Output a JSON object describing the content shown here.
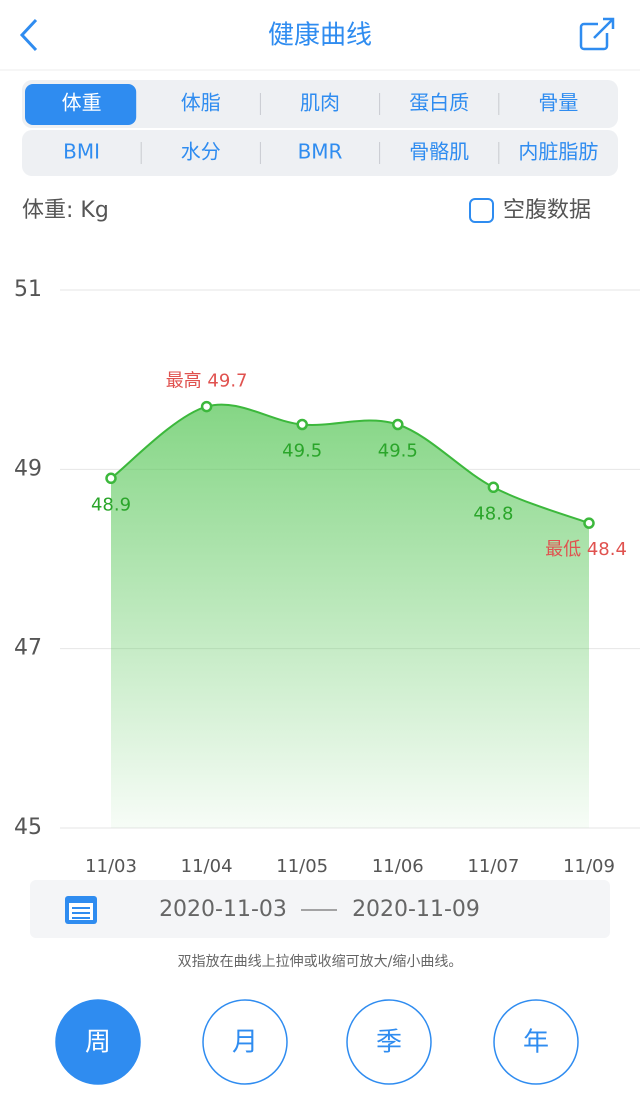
{
  "header": {
    "title": "健康曲线"
  },
  "tabs": {
    "items": [
      "体重",
      "体脂",
      "肌肉",
      "蛋白质",
      "骨量",
      "BMI",
      "水分",
      "BMR",
      "骨骼肌",
      "内脏脂肪"
    ],
    "selected": 0
  },
  "unit_label": "体重: Kg",
  "checkbox_label": "空腹数据",
  "chart_data": {
    "type": "area",
    "categories": [
      "11/03",
      "11/04",
      "11/05",
      "11/06",
      "11/07",
      "11/09"
    ],
    "values": [
      48.9,
      49.7,
      49.5,
      49.5,
      48.8,
      48.4
    ],
    "value_labels": [
      "48.9",
      "最高 49.7",
      "49.5",
      "49.5",
      "48.8",
      "最低 48.4"
    ],
    "color": "#3cb83c",
    "label_color": "#2aa52a",
    "highlight_color": "#e0524f",
    "ylim": [
      45,
      51
    ],
    "yticks": [
      45,
      47,
      49,
      51
    ],
    "grid": true
  },
  "date_range": {
    "start": "2020-11-03",
    "end": "2020-11-09"
  },
  "hint": "双指放在曲线上拉伸或收缩可放大/缩小曲线。",
  "periods": {
    "items": [
      "周",
      "月",
      "季",
      "年"
    ],
    "selected": 0
  }
}
